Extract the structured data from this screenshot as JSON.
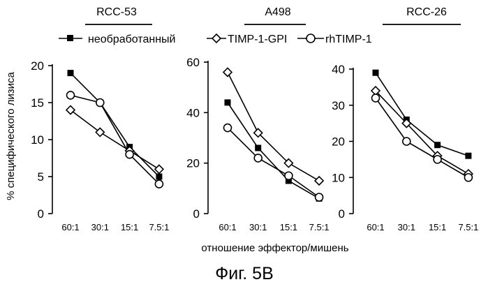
{
  "figure_label": "Фиг. 5B",
  "legend": {
    "untreated": "необработанный",
    "gpi": "TIMP-1-GPI",
    "rh": "rhTIMP-1"
  },
  "ylabel": "% специфического лизиса",
  "xlabel": "отношение эффектор/мишень",
  "chart_data": [
    {
      "type": "line",
      "title": "RCC-53",
      "categories": [
        "60:1",
        "30:1",
        "15:1",
        "7.5:1"
      ],
      "ylim": [
        0,
        20
      ],
      "yticks": [
        0,
        5,
        10,
        15,
        20
      ],
      "series": [
        {
          "name": "необработанный",
          "values": [
            19,
            15,
            9,
            5
          ]
        },
        {
          "name": "TIMP-1-GPI",
          "values": [
            14,
            11,
            8.5,
            6
          ]
        },
        {
          "name": "rhTIMP-1",
          "values": [
            16,
            15,
            8,
            4
          ]
        }
      ]
    },
    {
      "type": "line",
      "title": "A498",
      "categories": [
        "60:1",
        "30:1",
        "15:1",
        "7.5:1"
      ],
      "ylim": [
        0,
        60
      ],
      "yticks": [
        0,
        20,
        40,
        60
      ],
      "series": [
        {
          "name": "необработанный",
          "values": [
            44,
            26,
            13,
            6
          ]
        },
        {
          "name": "TIMP-1-GPI",
          "values": [
            56,
            32,
            20,
            13
          ]
        },
        {
          "name": "rhTIMP-1",
          "values": [
            34,
            22,
            15,
            6.5
          ]
        }
      ]
    },
    {
      "type": "line",
      "title": "RCC-26",
      "categories": [
        "60:1",
        "30:1",
        "15:1",
        "7.5:1"
      ],
      "ylim": [
        0,
        40
      ],
      "yticks": [
        0,
        10,
        20,
        30,
        40
      ],
      "series": [
        {
          "name": "необработанный",
          "values": [
            39,
            26,
            19,
            16
          ]
        },
        {
          "name": "TIMP-1-GPI",
          "values": [
            34,
            25,
            16,
            11
          ]
        },
        {
          "name": "rhTIMP-1",
          "values": [
            32,
            20,
            15,
            10
          ]
        }
      ]
    }
  ]
}
